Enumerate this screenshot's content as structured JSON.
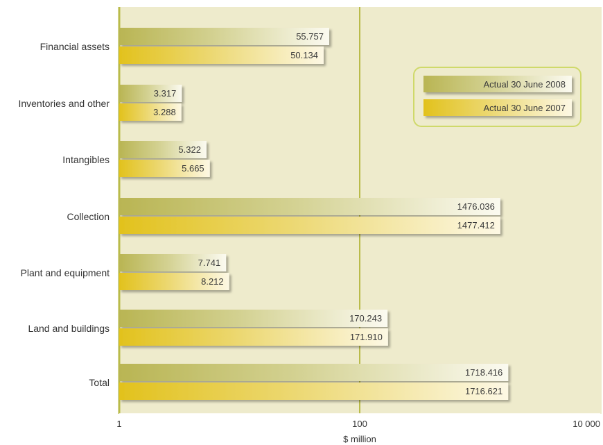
{
  "chart_data": {
    "type": "bar",
    "orientation": "horizontal",
    "xscale": "log",
    "xlim": [
      1,
      10000
    ],
    "xticks": [
      "1",
      "100",
      "10 000"
    ],
    "xlabel": "$ million",
    "categories": [
      "Financial assets",
      "Inventories and other",
      "Intangibles",
      "Collection",
      "Plant and equipment",
      "Land and buildings",
      "Total"
    ],
    "series": [
      {
        "name": "Actual 30 June 2008",
        "color": "#b9b553",
        "values": [
          55.757,
          3.317,
          5.322,
          1476.036,
          7.741,
          170.243,
          1718.416
        ],
        "labels": [
          "55.757",
          "3.317",
          "5.322",
          "1476.036",
          "7.741",
          "170.243",
          "1718.416"
        ]
      },
      {
        "name": "Actual 30 June 2007",
        "color": "#e2c21d",
        "values": [
          50.134,
          3.288,
          5.665,
          1477.412,
          8.212,
          171.91,
          1716.621
        ],
        "labels": [
          "50.134",
          "3.288",
          "5.665",
          "1477.412",
          "8.212",
          "171.910",
          "1716.621"
        ]
      }
    ],
    "grid": true,
    "legend_position": "top-right",
    "colors": {
      "plot_background": "#eeebcc",
      "axis_line": "#b9bb4a",
      "legend_border": "#cfd96a"
    }
  }
}
